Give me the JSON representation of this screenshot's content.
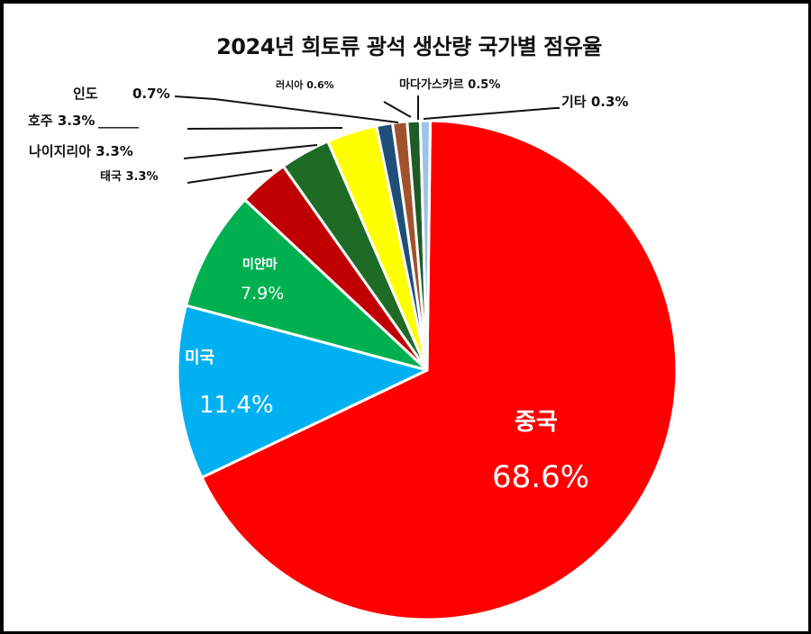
{
  "title": "2024년 희토류 광석 생산량 국가별 점유율",
  "chart_data": {
    "type": "pie",
    "title": "2024년 희토류 광석 생산량 국가별 점유율",
    "start_angle": "12 o'clock",
    "direction": "clockwise",
    "categories": [
      "중국",
      "미국",
      "미얀마",
      "태국",
      "나이지리아",
      "호주",
      "인도",
      "러시아",
      "마다가스카르",
      "기타"
    ],
    "values": [
      68.6,
      11.4,
      7.9,
      3.3,
      3.3,
      3.3,
      0.7,
      0.6,
      0.5,
      0.3
    ],
    "unit": "%",
    "colors": [
      "#ff0000",
      "#00b0f0",
      "#00b050",
      "#c00000",
      "#1e6b25",
      "#ffff00",
      "#1f4e79",
      "#a0522d",
      "#1e5c26",
      "#9dc3e6"
    ],
    "labels": [
      {
        "name": "중국",
        "value": "68.6%",
        "position": "inside"
      },
      {
        "name": "미국",
        "value": "11.4%",
        "position": "inside"
      },
      {
        "name": "미얀마",
        "value": "7.9%",
        "position": "inside"
      },
      {
        "name": "태국",
        "value": "3.3%",
        "position": "outside"
      },
      {
        "name": "나이지리아",
        "value": "3.3%",
        "position": "outside"
      },
      {
        "name": "호주",
        "value": "3.3%",
        "position": "outside"
      },
      {
        "name": "인도",
        "value": "0.7%",
        "position": "outside"
      },
      {
        "name": "러시아",
        "value": "0.6%",
        "position": "outside"
      },
      {
        "name": "마다가스카르",
        "value": "0.5%",
        "position": "outside"
      },
      {
        "name": "기타",
        "value": "0.3%",
        "position": "outside"
      }
    ],
    "legend": "none"
  },
  "labels": {
    "china": {
      "name": "중국",
      "value": "68.6%"
    },
    "usa": {
      "name": "미국",
      "value": "11.4%"
    },
    "myanmar": {
      "name": "미얀마",
      "value": "7.9%"
    },
    "thailand": "태국 3.3%",
    "nigeria": "나이지리아 3.3%",
    "australia": "호주 3.3%",
    "australia_tail": "______",
    "india_name": "인도",
    "india_value": "0.7%",
    "russia": "러시아 0.6%",
    "madagascar": "마다가스카르 0.5%",
    "other": "기타 0.3%"
  }
}
